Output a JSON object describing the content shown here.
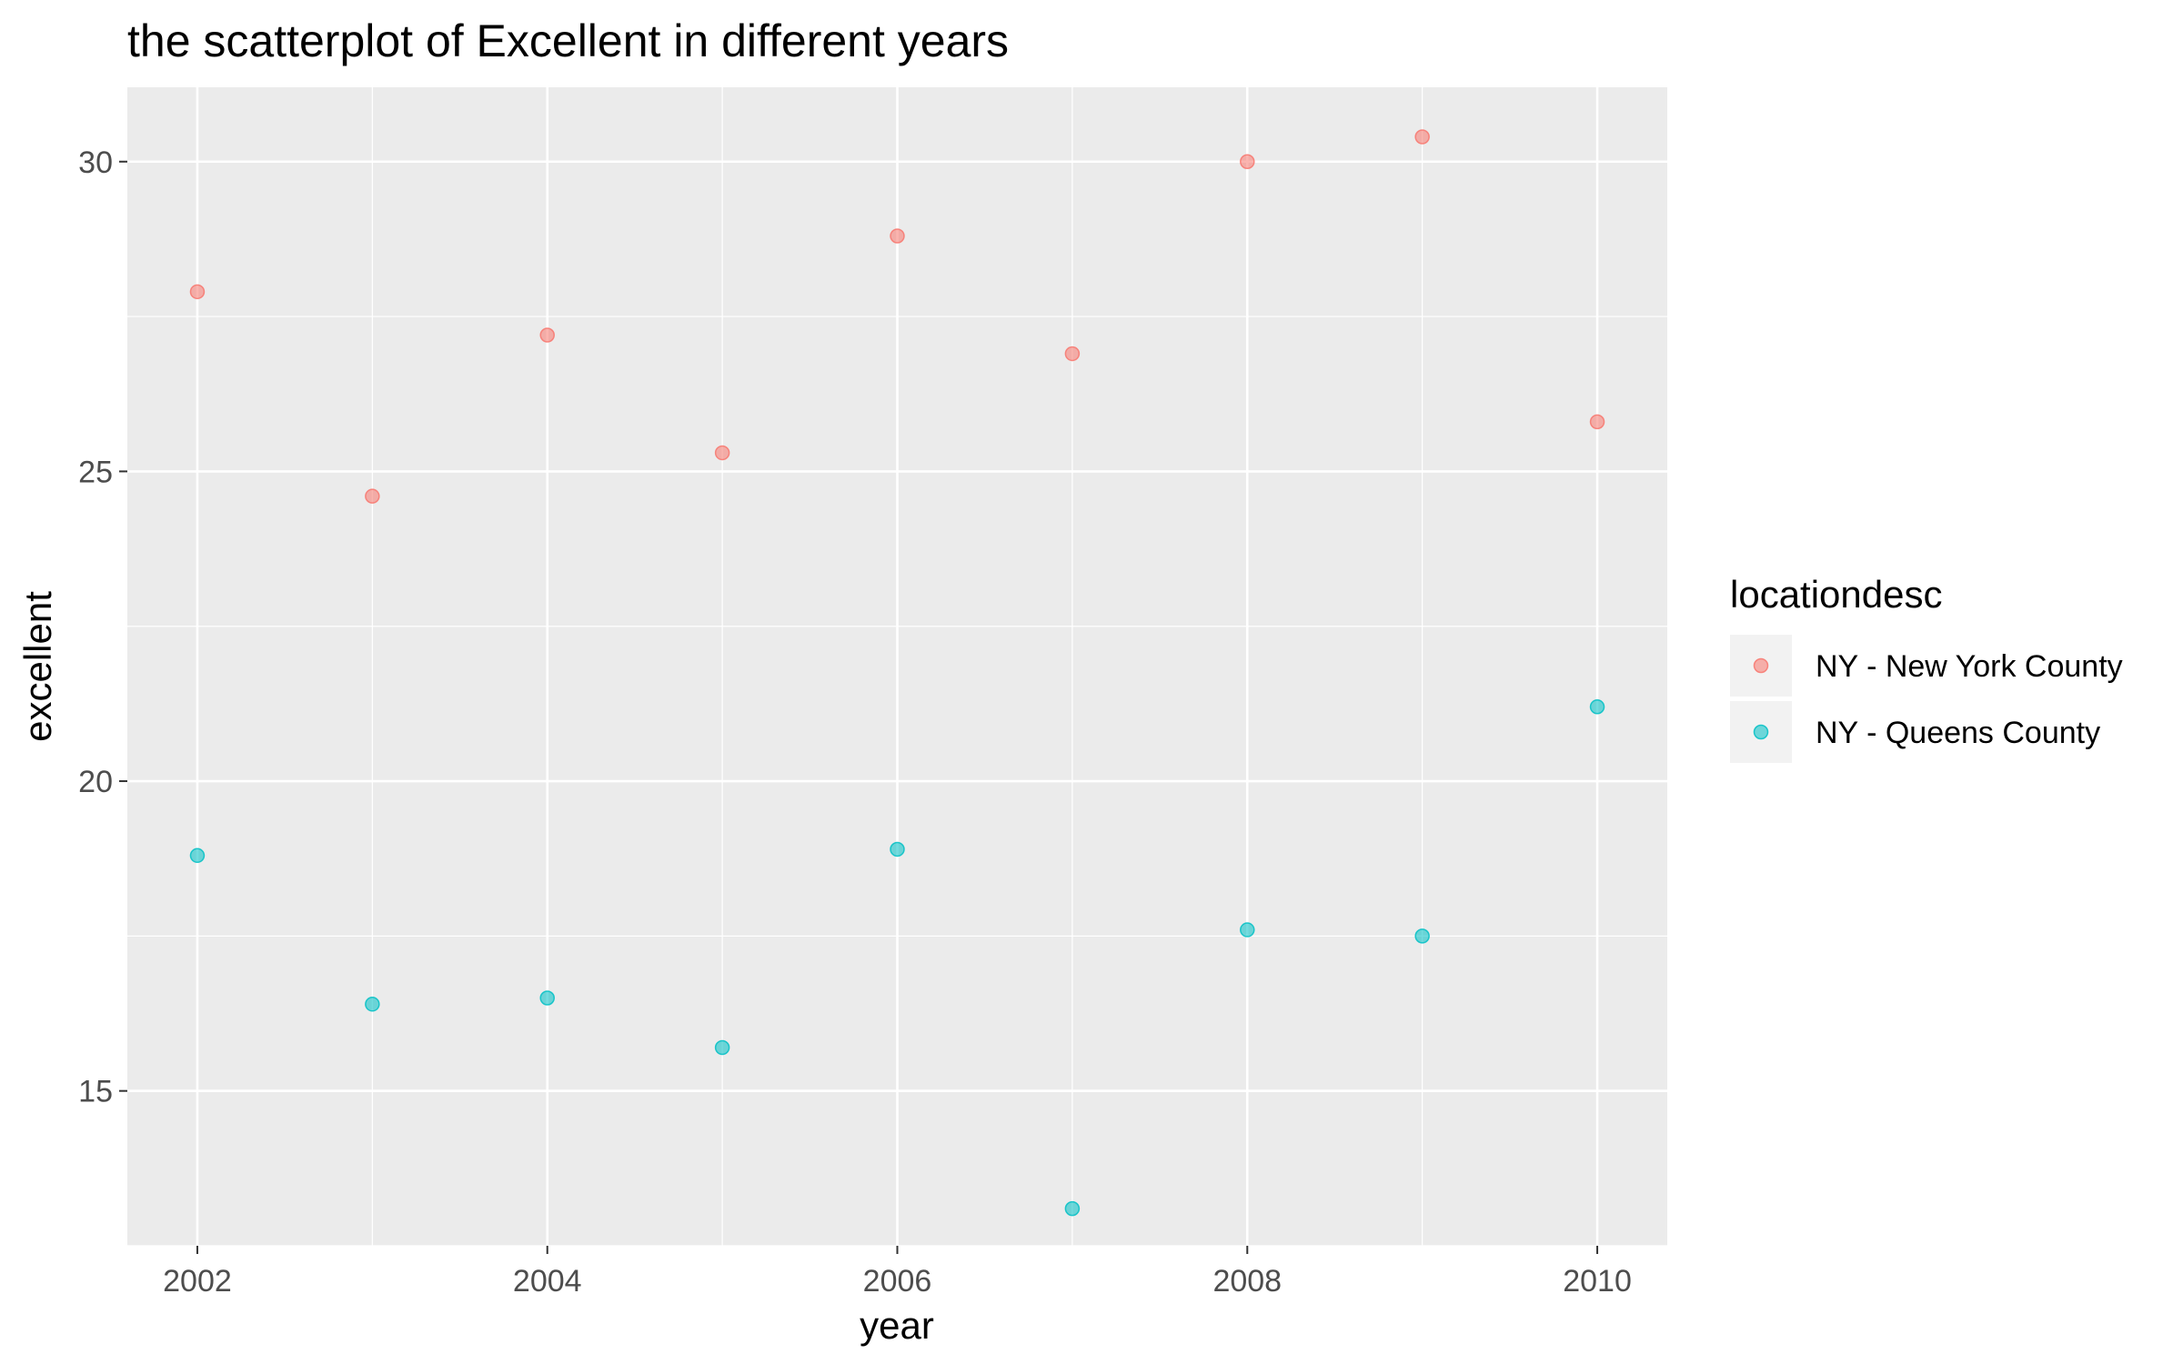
{
  "chart_data": {
    "type": "scatter",
    "title": "the scatterplot of Excellent in different years",
    "xlabel": "year",
    "ylabel": "excellent",
    "xlim": [
      2001.6,
      2010.4
    ],
    "ylim": [
      12.5,
      31.2
    ],
    "x_ticks": [
      2002,
      2004,
      2006,
      2008,
      2010
    ],
    "x_tick_labels": [
      "2002",
      "2004",
      "2006",
      "2008",
      "2010"
    ],
    "y_ticks": [
      15,
      20,
      25,
      30
    ],
    "y_tick_labels": [
      "15",
      "20",
      "25",
      "30"
    ],
    "grid": true,
    "legend": {
      "title": "locationdesc",
      "placement": "right"
    },
    "series": [
      {
        "name": "NY - New York County",
        "color": "#F8766D",
        "x": [
          2002,
          2003,
          2004,
          2005,
          2006,
          2007,
          2008,
          2009,
          2010
        ],
        "y": [
          27.9,
          24.6,
          27.2,
          25.3,
          28.8,
          26.9,
          30.0,
          30.4,
          25.8
        ]
      },
      {
        "name": "NY - Queens County",
        "color": "#00BFC4",
        "x": [
          2002,
          2003,
          2004,
          2005,
          2006,
          2007,
          2008,
          2009,
          2010
        ],
        "y": [
          18.8,
          16.4,
          16.5,
          15.7,
          18.9,
          13.1,
          17.6,
          17.5,
          21.2
        ]
      }
    ]
  }
}
